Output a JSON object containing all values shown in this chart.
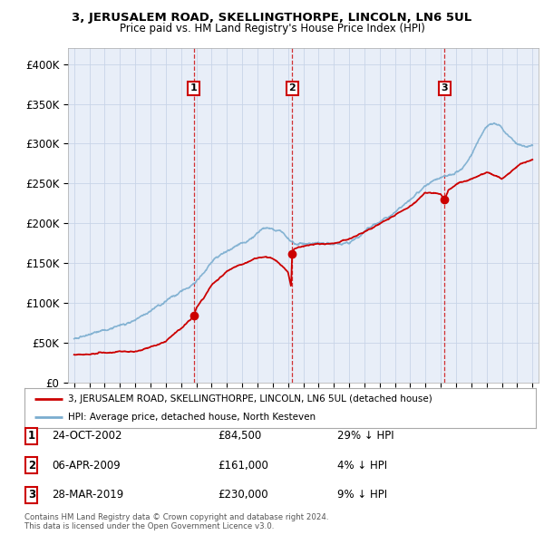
{
  "title": "3, JERUSALEM ROAD, SKELLINGTHORPE, LINCOLN, LN6 5UL",
  "subtitle": "Price paid vs. HM Land Registry's House Price Index (HPI)",
  "legend_label_red": "3, JERUSALEM ROAD, SKELLINGTHORPE, LINCOLN, LN6 5UL (detached house)",
  "legend_label_blue": "HPI: Average price, detached house, North Kesteven",
  "footnote1": "Contains HM Land Registry data © Crown copyright and database right 2024.",
  "footnote2": "This data is licensed under the Open Government Licence v3.0.",
  "transactions": [
    {
      "num": 1,
      "date": "24-OCT-2002",
      "price": 84500,
      "price_str": "£84,500",
      "year": 2002.82,
      "pct": "29%",
      "dir": "↓"
    },
    {
      "num": 2,
      "date": "06-APR-2009",
      "price": 161000,
      "price_str": "£161,000",
      "year": 2009.27,
      "pct": "4%",
      "dir": "↓"
    },
    {
      "num": 3,
      "date": "28-MAR-2019",
      "price": 230000,
      "price_str": "£230,000",
      "year": 2019.24,
      "pct": "9%",
      "dir": "↓"
    }
  ],
  "color_red": "#cc0000",
  "color_blue": "#7aadcf",
  "color_grid": "#c8d4e8",
  "color_vline": "#cc0000",
  "background_chart": "#e8eef8",
  "background_fig": "#ffffff",
  "ylim": [
    0,
    420000
  ],
  "yticks": [
    0,
    50000,
    100000,
    150000,
    200000,
    250000,
    300000,
    350000,
    400000
  ],
  "ytick_labels": [
    "£0",
    "£50K",
    "£100K",
    "£150K",
    "£200K",
    "£250K",
    "£300K",
    "£350K",
    "£400K"
  ],
  "xmin": 1994.6,
  "xmax": 2025.4,
  "hpi_years": [
    1995.0,
    1995.5,
    1996.0,
    1996.5,
    1997.0,
    1997.5,
    1998.0,
    1998.5,
    1999.0,
    1999.5,
    2000.0,
    2000.5,
    2001.0,
    2001.5,
    2002.0,
    2002.5,
    2003.0,
    2003.5,
    2004.0,
    2004.5,
    2005.0,
    2005.5,
    2006.0,
    2006.5,
    2007.0,
    2007.5,
    2008.0,
    2008.5,
    2009.0,
    2009.5,
    2010.0,
    2010.5,
    2011.0,
    2011.5,
    2012.0,
    2012.5,
    2013.0,
    2013.5,
    2014.0,
    2014.5,
    2015.0,
    2015.5,
    2016.0,
    2016.5,
    2017.0,
    2017.5,
    2018.0,
    2018.5,
    2019.0,
    2019.5,
    2020.0,
    2020.5,
    2021.0,
    2021.5,
    2022.0,
    2022.5,
    2023.0,
    2023.5,
    2024.0,
    2024.5,
    2025.0
  ],
  "hpi_vals": [
    55000,
    56000,
    57500,
    59000,
    62000,
    65000,
    68000,
    72000,
    77000,
    82000,
    88000,
    94000,
    100000,
    106000,
    112000,
    118000,
    126000,
    136000,
    148000,
    158000,
    165000,
    170000,
    175000,
    180000,
    188000,
    193000,
    192000,
    188000,
    178000,
    172000,
    175000,
    177000,
    178000,
    176000,
    174000,
    173000,
    175000,
    180000,
    187000,
    194000,
    200000,
    207000,
    214000,
    222000,
    232000,
    240000,
    248000,
    254000,
    258000,
    260000,
    262000,
    268000,
    282000,
    302000,
    318000,
    325000,
    318000,
    308000,
    300000,
    295000,
    298000
  ],
  "prop_years": [
    1995.0,
    1996.0,
    1997.0,
    1998.0,
    1999.0,
    2000.0,
    2001.0,
    2002.0,
    2002.82,
    2003.0,
    2003.5,
    2004.0,
    2005.0,
    2006.0,
    2007.0,
    2007.5,
    2008.0,
    2008.5,
    2009.0,
    2009.2,
    2009.27,
    2009.4,
    2009.7,
    2010.0,
    2011.0,
    2012.0,
    2013.0,
    2014.0,
    2015.0,
    2016.0,
    2017.0,
    2018.0,
    2019.0,
    2019.24,
    2019.5,
    2020.0,
    2021.0,
    2022.0,
    2022.5,
    2023.0,
    2023.5,
    2024.0,
    2025.0
  ],
  "prop_vals": [
    35000,
    36000,
    38000,
    40000,
    42000,
    47000,
    55000,
    72000,
    84500,
    95000,
    108000,
    122000,
    138000,
    148000,
    155000,
    157000,
    155000,
    148000,
    138000,
    120000,
    161000,
    168000,
    170000,
    172000,
    175000,
    178000,
    182000,
    190000,
    200000,
    212000,
    225000,
    240000,
    238000,
    230000,
    242000,
    248000,
    255000,
    262000,
    258000,
    255000,
    262000,
    272000,
    280000
  ]
}
